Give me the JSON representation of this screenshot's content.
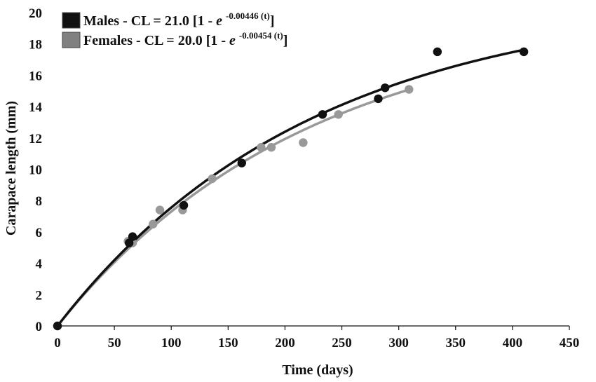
{
  "chart_data": {
    "type": "scatter",
    "xlabel": "Time (days)",
    "ylabel": "Carapace length (mm)",
    "xlim": [
      0,
      450
    ],
    "ylim": [
      0,
      20
    ],
    "x_ticks": [
      "0",
      "50",
      "100",
      "150",
      "200",
      "250",
      "300",
      "350",
      "400",
      "450"
    ],
    "y_ticks": [
      "0",
      "2",
      "4",
      "6",
      "8",
      "10",
      "12",
      "14",
      "16",
      "18",
      "20"
    ],
    "grid": false,
    "legend_position": "top-left",
    "series": [
      {
        "name": "Males - CL = 21.0 [1 - e -0.00446 (t)]",
        "legend": {
          "prefix": "Males - CL = 21.0 [1 - ",
          "base": "e",
          "exponent": "-0.00446 (t)",
          "suffix": "]"
        },
        "color": "#111111",
        "points": [
          {
            "x": 0,
            "y": 0
          },
          {
            "x": 63,
            "y": 5.3
          },
          {
            "x": 66,
            "y": 5.7
          },
          {
            "x": 111,
            "y": 7.7
          },
          {
            "x": 162,
            "y": 10.4
          },
          {
            "x": 233,
            "y": 13.5
          },
          {
            "x": 282,
            "y": 14.5
          },
          {
            "x": 288,
            "y": 15.2
          },
          {
            "x": 334,
            "y": 17.5
          },
          {
            "x": 410,
            "y": 17.5
          }
        ],
        "curve": {
          "asymptote": 21.0,
          "k": 0.00446,
          "x_start": 0,
          "x_end": 410
        }
      },
      {
        "name": "Females - CL = 20.0 [1 - e -0.00454 (t)]",
        "legend": {
          "prefix": "Females - CL = 20.0 [1 - ",
          "base": "e",
          "exponent": "-0.00454 (t)",
          "suffix": "]"
        },
        "color": "#999999",
        "points": [
          {
            "x": 0,
            "y": 0
          },
          {
            "x": 62,
            "y": 5.4
          },
          {
            "x": 66,
            "y": 5.3
          },
          {
            "x": 84,
            "y": 6.5
          },
          {
            "x": 90,
            "y": 7.4
          },
          {
            "x": 110,
            "y": 7.4
          },
          {
            "x": 136,
            "y": 9.4
          },
          {
            "x": 179,
            "y": 11.4
          },
          {
            "x": 188,
            "y": 11.4
          },
          {
            "x": 216,
            "y": 11.7
          },
          {
            "x": 247,
            "y": 13.5
          },
          {
            "x": 309,
            "y": 15.1
          }
        ],
        "curve": {
          "asymptote": 20.0,
          "k": 0.00454,
          "x_start": 0,
          "x_end": 309
        }
      }
    ]
  }
}
